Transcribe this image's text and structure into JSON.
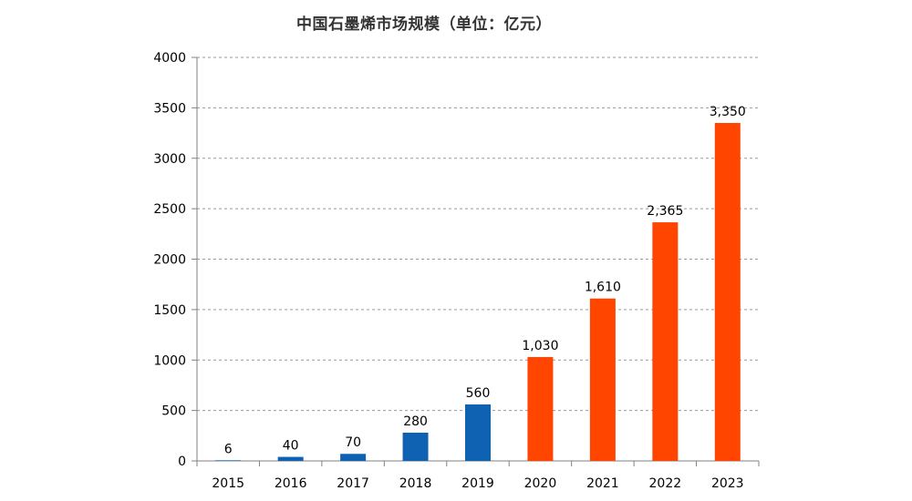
{
  "chart_data": {
    "type": "bar",
    "title": "中国石墨烯市场规模（单位：亿元）",
    "categories": [
      "2015",
      "2016",
      "2017",
      "2018",
      "2019",
      "2020",
      "2021",
      "2022",
      "2023"
    ],
    "values": [
      6,
      40,
      70,
      280,
      560,
      1030,
      1610,
      2365,
      3350
    ],
    "data_labels": [
      "6",
      "40",
      "70",
      "280",
      "560",
      "1,030",
      "1,610",
      "2,365",
      "3,350"
    ],
    "bar_colors": [
      "#0e62b1",
      "#0e62b1",
      "#0e62b1",
      "#0e62b1",
      "#0e62b1",
      "#ff4500",
      "#ff4500",
      "#ff4500",
      "#ff4500"
    ],
    "ylim": [
      0,
      4000
    ],
    "yticks": [
      "0",
      "500",
      "1000",
      "1500",
      "2000",
      "2500",
      "3000",
      "3500",
      "4000"
    ],
    "grid": true,
    "legend": "none",
    "xlabel": "",
    "ylabel": ""
  }
}
